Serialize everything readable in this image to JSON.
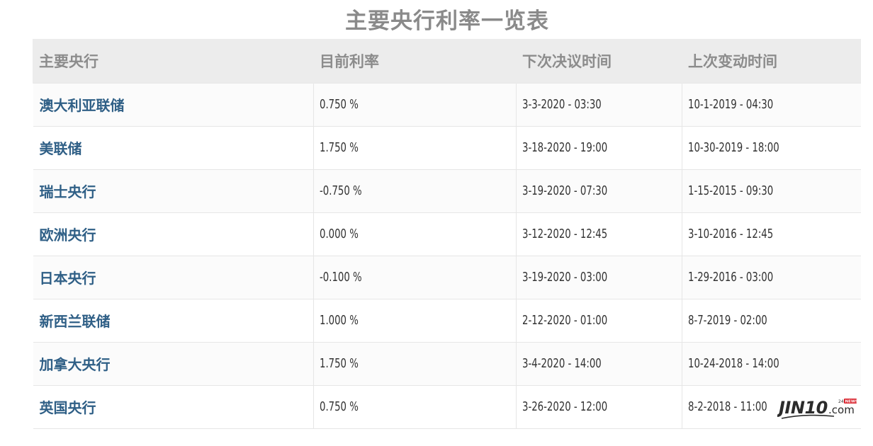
{
  "title": "主要央行利率一览表",
  "table": {
    "headers": [
      "主要央行",
      "目前利率",
      "下次决议时间",
      "上次变动时间"
    ],
    "rows": [
      {
        "bank": "澳大利亚联储",
        "rate": "0.750 %",
        "next": "3-3-2020 - 03:30",
        "last": "10-1-2019 - 04:30"
      },
      {
        "bank": "美联储",
        "rate": "1.750 %",
        "next": "3-18-2020 - 19:00",
        "last": "10-30-2019 - 18:00"
      },
      {
        "bank": "瑞士央行",
        "rate": "-0.750 %",
        "next": "3-19-2020 - 07:30",
        "last": "1-15-2015 - 09:30"
      },
      {
        "bank": "欧洲央行",
        "rate": "0.000 %",
        "next": "3-12-2020 - 12:45",
        "last": "3-10-2016 - 12:45"
      },
      {
        "bank": "日本央行",
        "rate": "-0.100 %",
        "next": "3-19-2020 - 03:00",
        "last": "1-29-2016 - 03:00"
      },
      {
        "bank": "新西兰联储",
        "rate": "1.000 %",
        "next": "2-12-2020 - 01:00",
        "last": "8-7-2019 - 02:00"
      },
      {
        "bank": "加拿大央行",
        "rate": "1.750 %",
        "next": "3-4-2020 - 14:00",
        "last": "10-24-2018 - 14:00"
      },
      {
        "bank": "英国央行",
        "rate": "0.750 %",
        "next": "3-26-2020 - 12:00",
        "last": "8-2-2018 - 11:00"
      }
    ]
  },
  "watermark": {
    "brand": "JIN10",
    "suffix": ".com",
    "tag_24": "24",
    "tag_news": "NEWS"
  },
  "colors": {
    "bank_name": "#2f5f86",
    "header_bg": "#ececec",
    "header_text": "#8c8c8c",
    "title": "#8a8a8a",
    "logo_red": "#d9232d"
  }
}
